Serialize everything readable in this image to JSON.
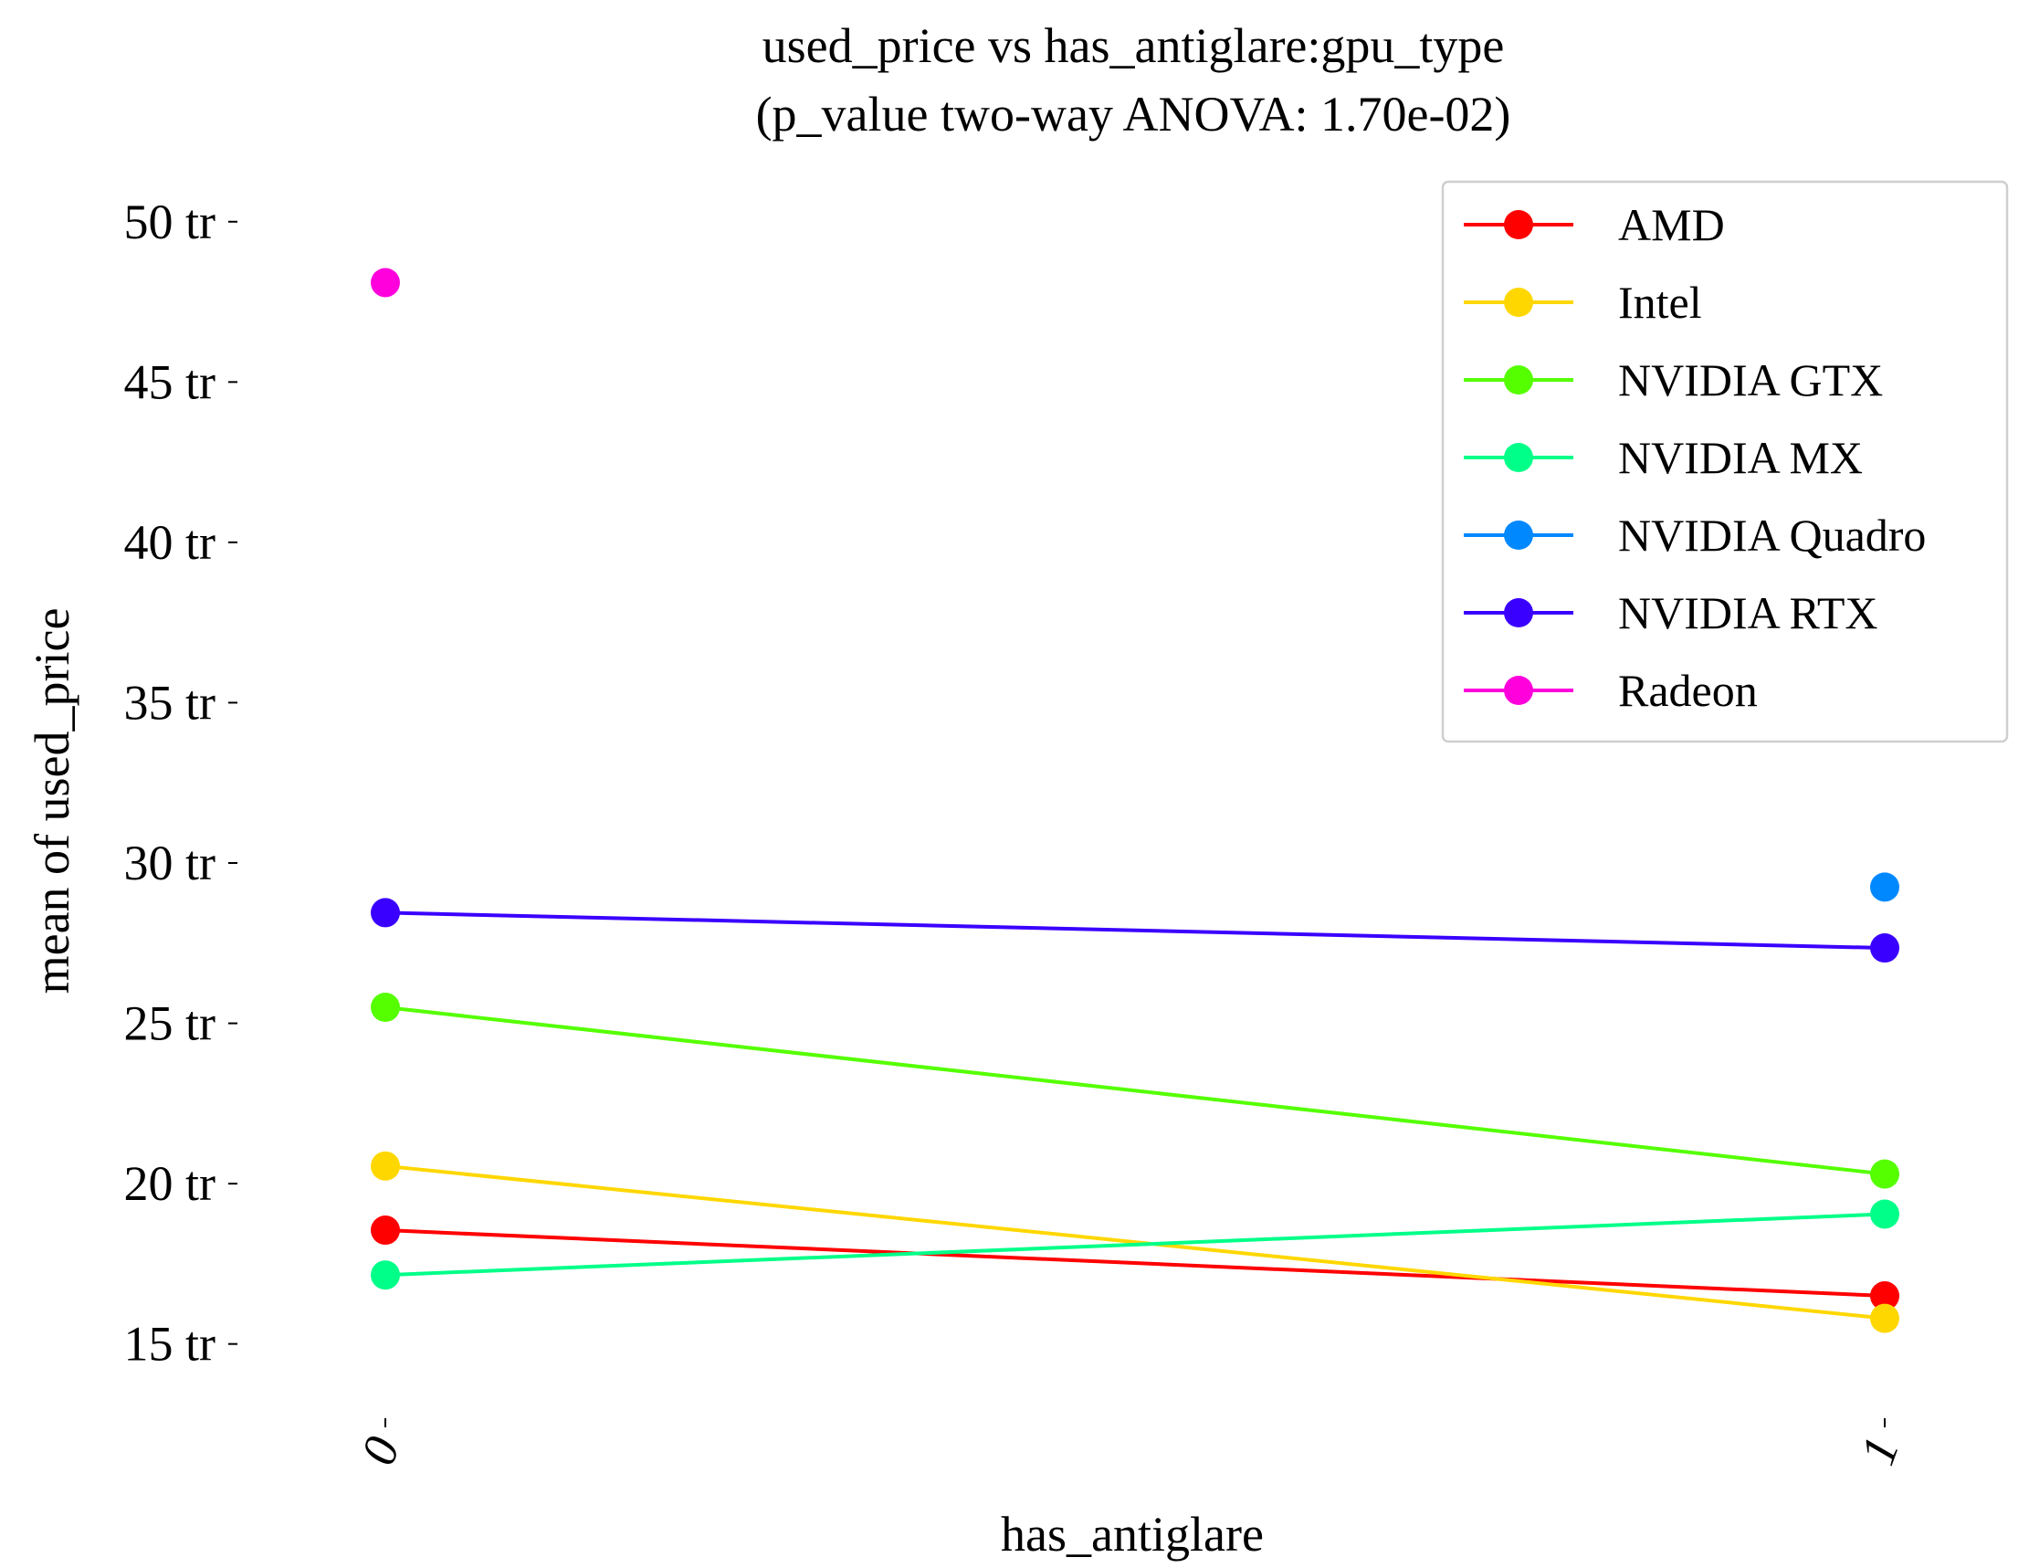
{
  "chart_data": {
    "type": "line",
    "title": "used_price vs has_antiglare:gpu_type",
    "subtitle": "(p_value two-way ANOVA: 1.70e-02)",
    "xlabel": "has_antiglare",
    "ylabel": "mean of used_price",
    "categories": [
      "0",
      "1"
    ],
    "y_ticks": [
      {
        "value": 15000000,
        "label": "15 tr"
      },
      {
        "value": 20000000,
        "label": "20 tr"
      },
      {
        "value": 25000000,
        "label": "25 tr"
      },
      {
        "value": 30000000,
        "label": "30 tr"
      },
      {
        "value": 35000000,
        "label": "35 tr"
      },
      {
        "value": 40000000,
        "label": "40 tr"
      },
      {
        "value": 45000000,
        "label": "45 tr"
      },
      {
        "value": 50000000,
        "label": "50 tr"
      }
    ],
    "ylim": [
      12200000,
      52500000
    ],
    "grid": false,
    "legend_position": "top-right",
    "series": [
      {
        "name": "AMD",
        "color": "#ff0000",
        "values": [
          18550000,
          16500000
        ]
      },
      {
        "name": "Intel",
        "color": "#ffd700",
        "values": [
          20550000,
          15800000
        ]
      },
      {
        "name": "NVIDIA GTX",
        "color": "#55ff00",
        "values": [
          25500000,
          20300000
        ]
      },
      {
        "name": "NVIDIA MX",
        "color": "#00ff88",
        "values": [
          17150000,
          19050000
        ]
      },
      {
        "name": "NVIDIA Quadro",
        "color": "#0088ff",
        "values": [
          null,
          29250000
        ]
      },
      {
        "name": "NVIDIA RTX",
        "color": "#3a00ff",
        "values": [
          28450000,
          27350000
        ]
      },
      {
        "name": "Radeon",
        "color": "#ff00dd",
        "values": [
          48100000,
          null
        ]
      }
    ]
  }
}
